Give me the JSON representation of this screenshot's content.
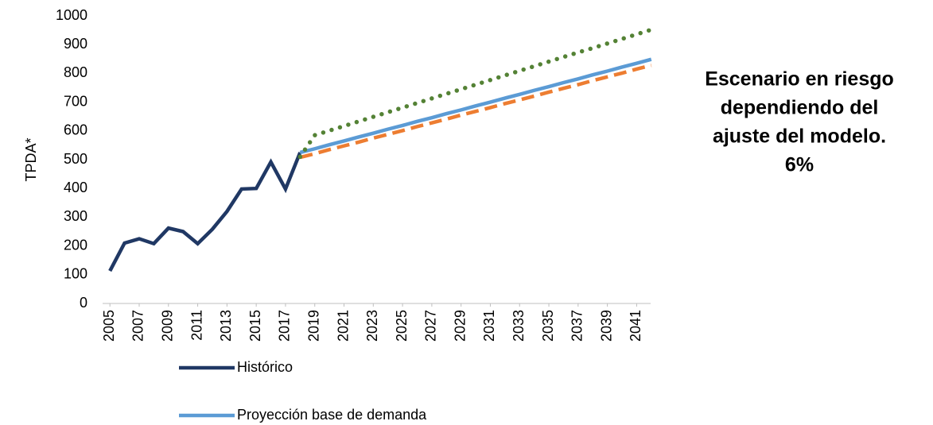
{
  "chart_data": {
    "type": "line",
    "y_label": "TPDA*",
    "annotation": [
      "Escenario en riesgo",
      "dependiendo del",
      "ajuste del modelo.",
      "6%"
    ],
    "x": [
      2005,
      2006,
      2007,
      2008,
      2009,
      2010,
      2011,
      2012,
      2013,
      2014,
      2015,
      2016,
      2017,
      2018,
      2019,
      2020,
      2021,
      2022,
      2023,
      2024,
      2025,
      2026,
      2027,
      2028,
      2029,
      2030,
      2031,
      2032,
      2033,
      2034,
      2035,
      2036,
      2037,
      2038,
      2039,
      2040,
      2041,
      2042
    ],
    "xlim": [
      2004.5,
      2042.5
    ],
    "xticks": [
      2005,
      2007,
      2009,
      2011,
      2013,
      2015,
      2017,
      2019,
      2021,
      2023,
      2025,
      2027,
      2029,
      2031,
      2033,
      2035,
      2037,
      2039,
      2041
    ],
    "ylim": [
      0,
      1000
    ],
    "yticks": [
      0,
      100,
      200,
      300,
      400,
      500,
      600,
      700,
      800,
      900,
      1000
    ],
    "legend": "bottom",
    "series": [
      {
        "name": "Histórico",
        "color": "#203864",
        "style": "solid",
        "values": [
          113,
          210,
          225,
          208,
          262,
          250,
          208,
          258,
          320,
          398,
          400,
          492,
          398,
          525,
          null,
          null,
          null,
          null,
          null,
          null,
          null,
          null,
          null,
          null,
          null,
          null,
          null,
          null,
          null,
          null,
          null,
          null,
          null,
          null,
          null,
          null,
          null,
          null
        ]
      },
      {
        "name": "Proyección base de demanda",
        "color": "#5b9bd5",
        "style": "solid",
        "values": [
          null,
          null,
          null,
          null,
          null,
          null,
          null,
          null,
          null,
          null,
          null,
          null,
          null,
          525,
          538,
          552,
          565,
          579,
          592,
          606,
          619,
          633,
          646,
          660,
          673,
          687,
          700,
          714,
          727,
          741,
          754,
          768,
          781,
          795,
          808,
          822,
          835,
          849
        ]
      },
      {
        "color": "#ed7d31",
        "style": "dashed",
        "values": [
          null,
          null,
          null,
          null,
          null,
          null,
          null,
          null,
          null,
          null,
          null,
          null,
          null,
          508,
          521,
          535,
          548,
          561,
          575,
          588,
          601,
          615,
          628,
          641,
          655,
          668,
          681,
          695,
          708,
          721,
          735,
          748,
          761,
          775,
          788,
          801,
          815,
          828
        ]
      },
      {
        "color": "#548235",
        "style": "dotted",
        "values": [
          null,
          null,
          null,
          null,
          null,
          null,
          null,
          null,
          null,
          null,
          null,
          null,
          null,
          510,
          585,
          601,
          617,
          633,
          649,
          665,
          681,
          697,
          713,
          729,
          745,
          761,
          777,
          793,
          809,
          825,
          841,
          857,
          873,
          888,
          904,
          920,
          936,
          952
        ]
      }
    ]
  }
}
